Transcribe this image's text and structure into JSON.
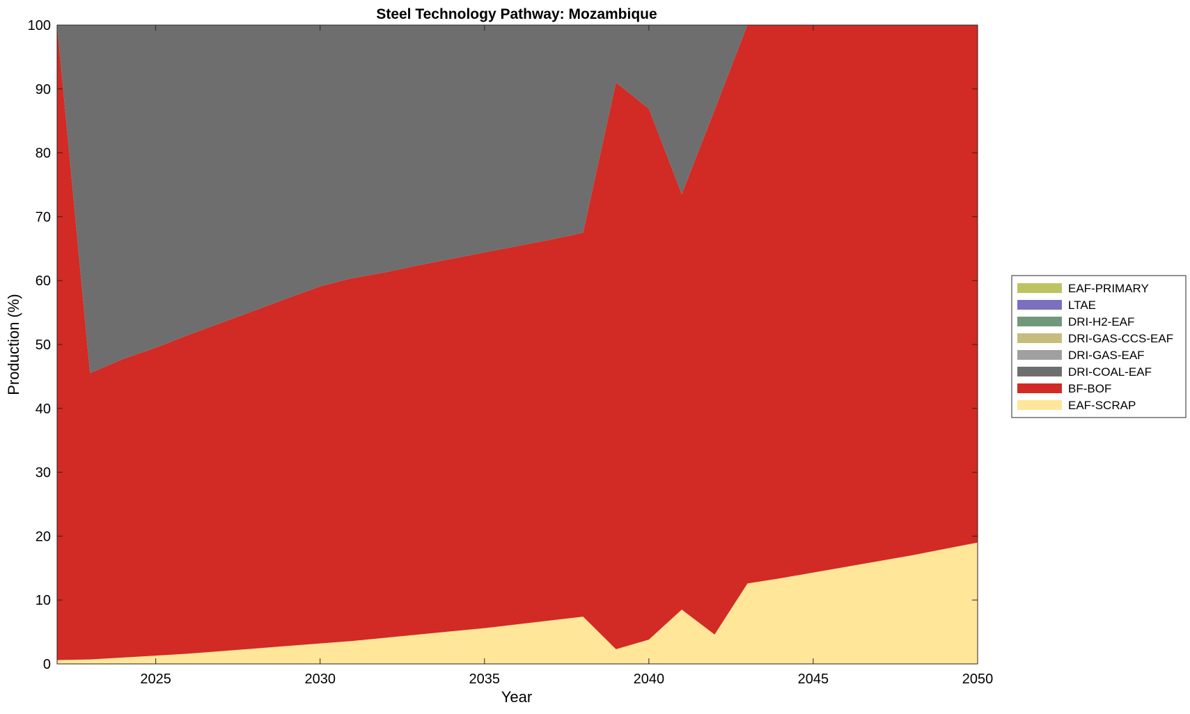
{
  "chart_data": {
    "type": "area",
    "title": "Steel Technology Pathway: Mozambique",
    "xlabel": "Year",
    "ylabel": "Production (%)",
    "xlim": [
      2022,
      2050
    ],
    "ylim": [
      0,
      100
    ],
    "xticks": [
      2025,
      2030,
      2035,
      2040,
      2045,
      2050
    ],
    "yticks": [
      0,
      10,
      20,
      30,
      40,
      50,
      60,
      70,
      80,
      90,
      100
    ],
    "grid": false,
    "stacked": true,
    "legend_position": "right",
    "x": [
      2022,
      2023,
      2024,
      2025,
      2026,
      2027,
      2028,
      2029,
      2030,
      2031,
      2032,
      2033,
      2034,
      2035,
      2036,
      2037,
      2038,
      2039,
      2040,
      2041,
      2042,
      2043,
      2044,
      2045,
      2046,
      2047,
      2048,
      2049,
      2050
    ],
    "series": [
      {
        "name": "EAF-SCRAP",
        "color": "#FFE699",
        "values": [
          0.6,
          0.7,
          1.0,
          1.3,
          1.6,
          2.0,
          2.4,
          2.8,
          3.2,
          3.6,
          4.1,
          4.6,
          5.1,
          5.6,
          6.2,
          6.8,
          7.4,
          2.3,
          3.8,
          8.5,
          4.6,
          12.6,
          13.4,
          14.3,
          15.2,
          16.1,
          17.0,
          18.0,
          19.0
        ]
      },
      {
        "name": "BF-BOF",
        "color": "#D22A24",
        "values": [
          99.4,
          44.8,
          46.7,
          48.2,
          49.9,
          51.4,
          52.9,
          54.4,
          55.9,
          56.8,
          57.2,
          57.8,
          58.3,
          58.8,
          59.2,
          59.6,
          60.1,
          88.7,
          83.1,
          65.0,
          82.1,
          87.4,
          86.6,
          85.7,
          84.8,
          83.9,
          83.0,
          82.0,
          81.0
        ]
      },
      {
        "name": "DRI-COAL-EAF",
        "color": "#6E6E6E",
        "values": [
          0.0,
          54.5,
          52.3,
          50.5,
          48.5,
          46.6,
          44.7,
          42.8,
          40.9,
          39.6,
          38.7,
          37.6,
          36.6,
          35.6,
          34.6,
          33.6,
          32.5,
          9.0,
          13.1,
          26.5,
          13.3,
          0.0,
          0.0,
          0.0,
          0.0,
          0.0,
          0.0,
          0.0,
          0.0
        ]
      },
      {
        "name": "DRI-GAS-EAF",
        "color": "#A0A0A0",
        "values": [
          0,
          0,
          0,
          0,
          0,
          0,
          0,
          0,
          0,
          0,
          0,
          0,
          0,
          0,
          0,
          0,
          0,
          0,
          0,
          0,
          0,
          0,
          0,
          0,
          0,
          0,
          0,
          0,
          0
        ]
      },
      {
        "name": "DRI-GAS-CCS-EAF",
        "color": "#C5BC7E",
        "values": [
          0,
          0,
          0,
          0,
          0,
          0,
          0,
          0,
          0,
          0,
          0,
          0,
          0,
          0,
          0,
          0,
          0,
          0,
          0,
          0,
          0,
          0,
          0,
          0,
          0,
          0,
          0,
          0,
          0
        ]
      },
      {
        "name": "DRI-H2-EAF",
        "color": "#72987A",
        "values": [
          0,
          0,
          0,
          0,
          0,
          0,
          0,
          0,
          0,
          0,
          0,
          0,
          0,
          0,
          0,
          0,
          0,
          0,
          0,
          0,
          0,
          0,
          0,
          0,
          0,
          0,
          0,
          0,
          0
        ]
      },
      {
        "name": "LTAE",
        "color": "#7B6FC0",
        "values": [
          0,
          0,
          0,
          0,
          0,
          0,
          0,
          0,
          0,
          0,
          0,
          0,
          0,
          0,
          0,
          0,
          0,
          0,
          0,
          0,
          0,
          0,
          0,
          0,
          0,
          0,
          0,
          0,
          0
        ]
      },
      {
        "name": "EAF-PRIMARY",
        "color": "#BCC462",
        "values": [
          0,
          0,
          0,
          0,
          0,
          0,
          0,
          0,
          0,
          0,
          0,
          0,
          0,
          0,
          0,
          0,
          0,
          0,
          0,
          0,
          0,
          0,
          0,
          0,
          0,
          0,
          0,
          0,
          0
        ]
      }
    ],
    "legend_order": [
      "EAF-PRIMARY",
      "LTAE",
      "DRI-H2-EAF",
      "DRI-GAS-CCS-EAF",
      "DRI-GAS-EAF",
      "DRI-COAL-EAF",
      "BF-BOF",
      "EAF-SCRAP"
    ]
  }
}
